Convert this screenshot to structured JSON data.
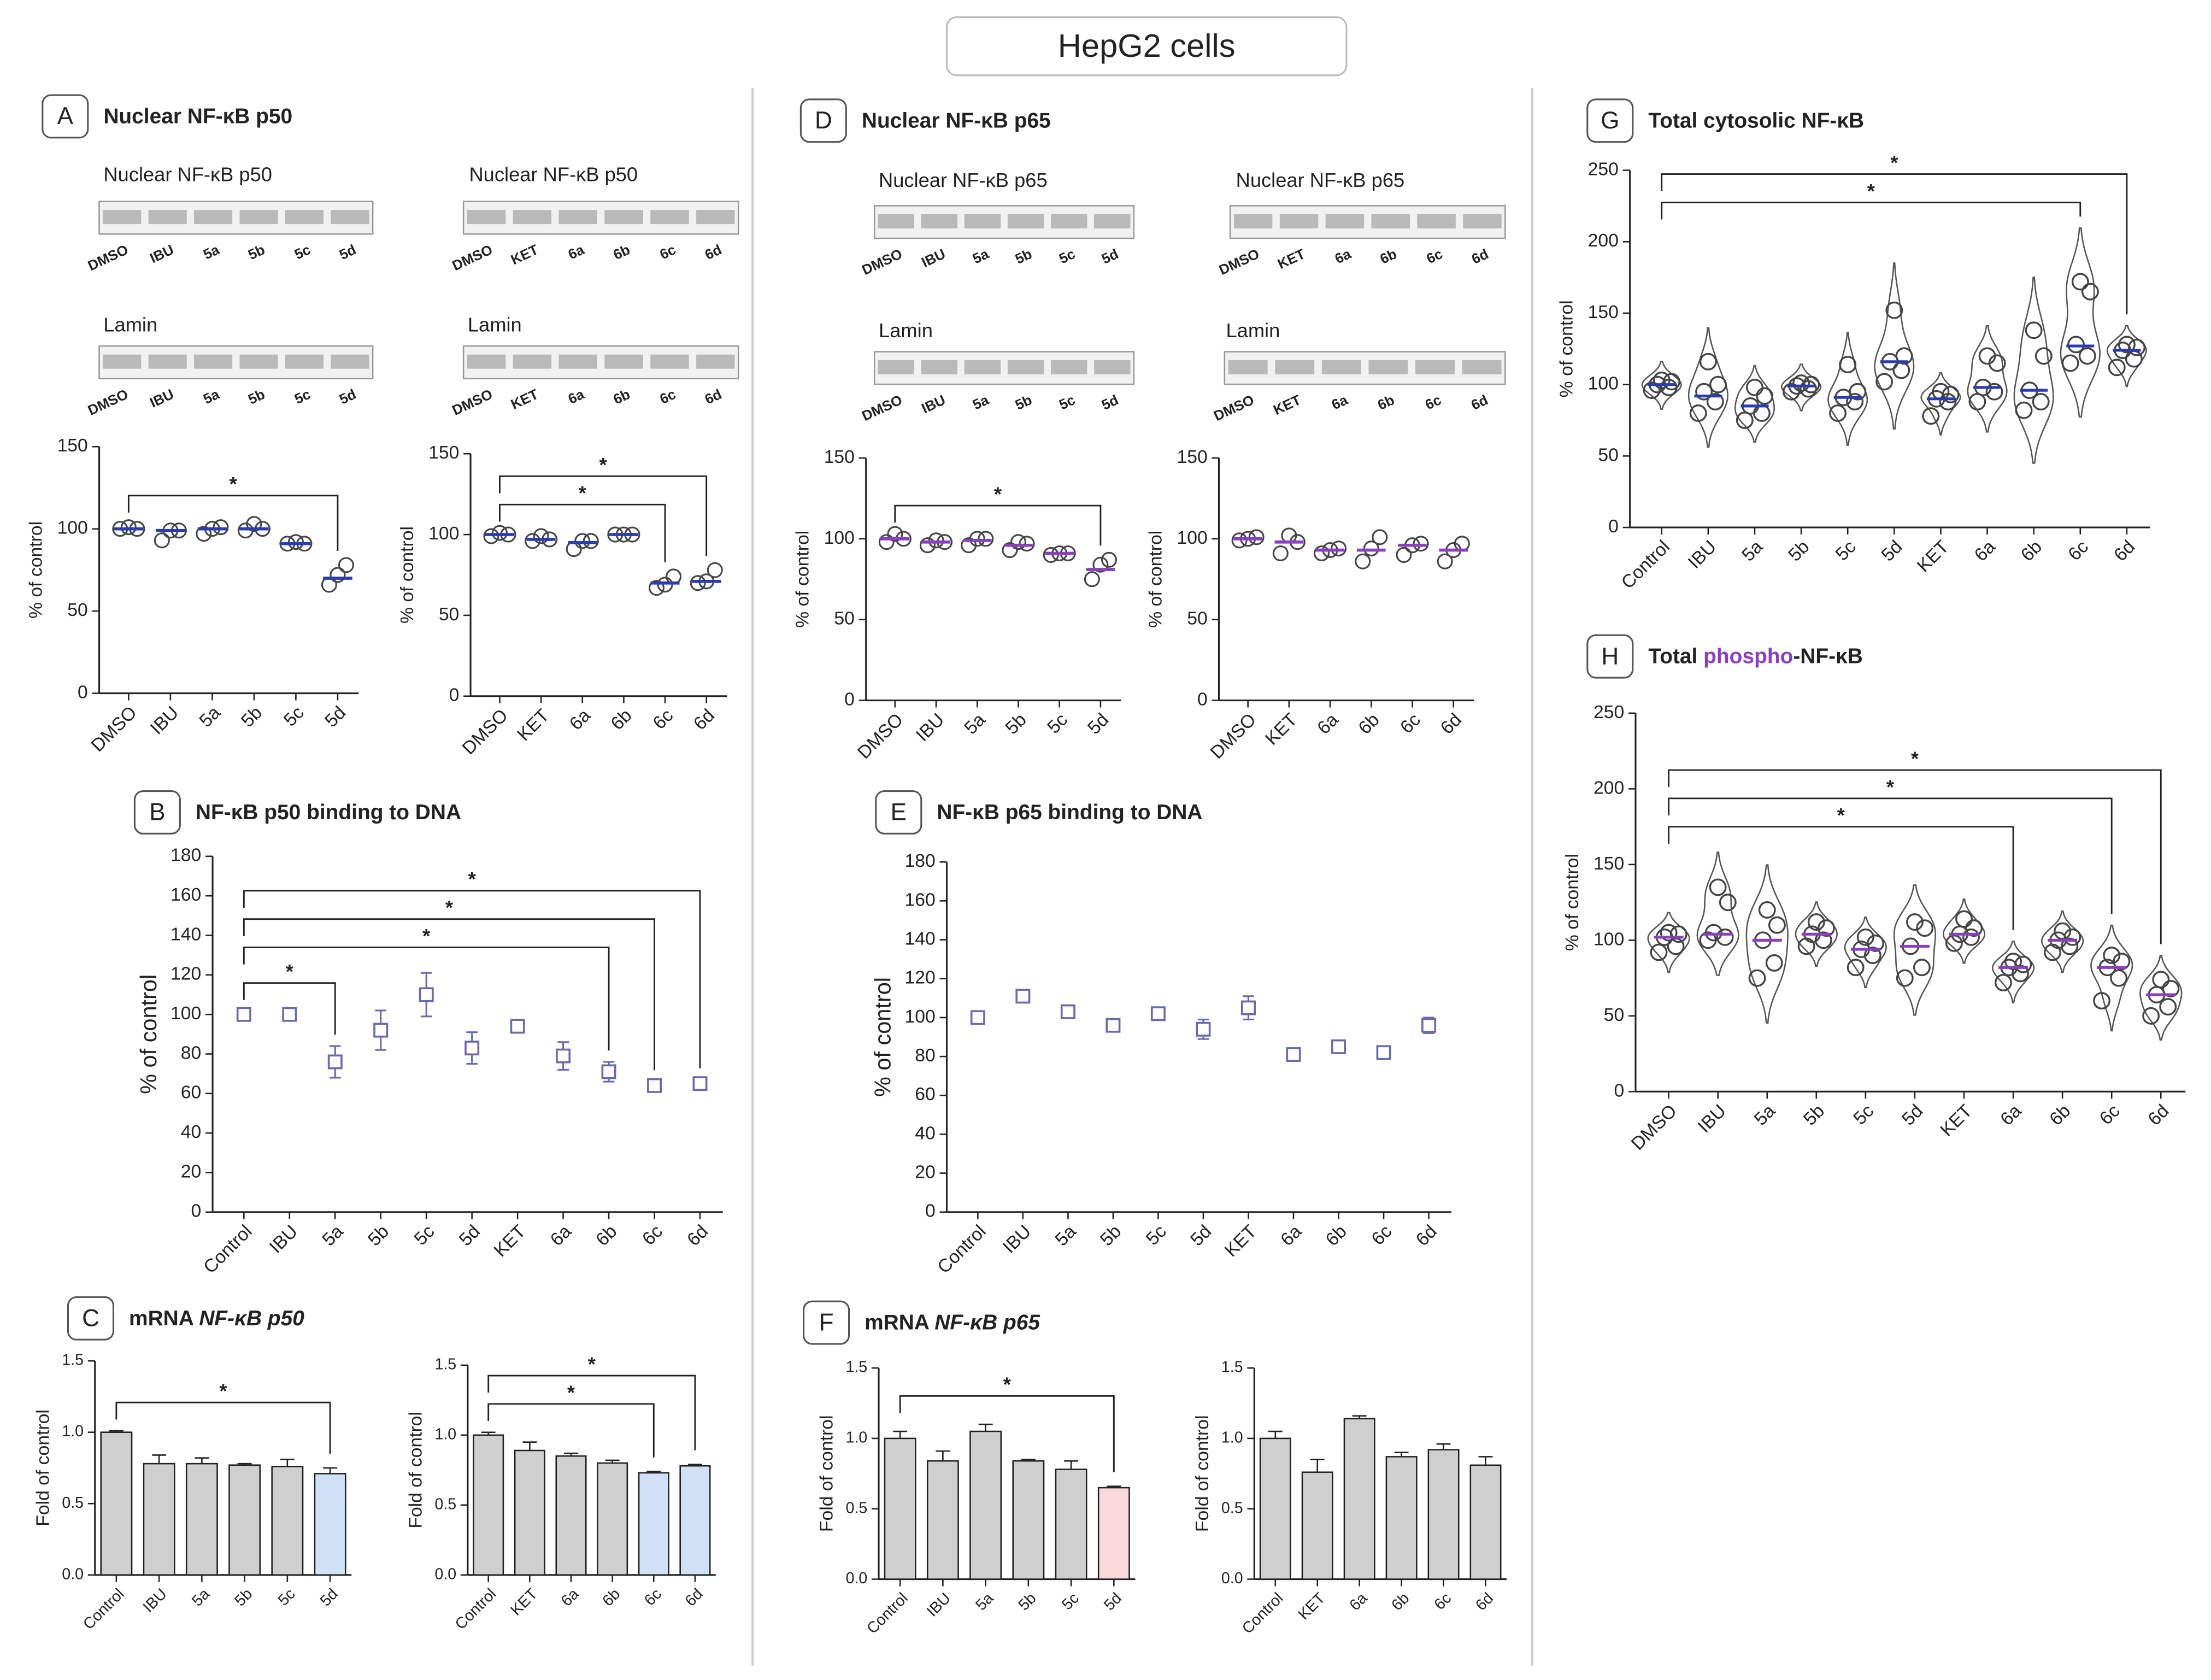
{
  "header": {
    "title": "HepG2 cells"
  },
  "panels": [
    {
      "letter": "A",
      "title": [
        {
          "text": "Nuclear NF-κB p50"
        }
      ],
      "blots": [
        {
          "label": "Nuclear NF-κB p50",
          "lanes": [
            "DMSO",
            "IBU",
            "5a",
            "5b",
            "5c",
            "5d"
          ]
        },
        {
          "label": "Nuclear NF-κB p50",
          "lanes": [
            "DMSO",
            "KET",
            "6a",
            "6b",
            "6c",
            "6d"
          ]
        },
        {
          "label": "Lamin",
          "lanes": [
            "DMSO",
            "IBU",
            "5a",
            "5b",
            "5c",
            "5d"
          ]
        },
        {
          "label": "Lamin",
          "lanes": [
            "DMSO",
            "KET",
            "6a",
            "6b",
            "6c",
            "6d"
          ]
        }
      ]
    },
    {
      "letter": "B",
      "title": [
        {
          "text": "NF-κB p50 binding to DNA"
        }
      ]
    },
    {
      "letter": "C",
      "title": [
        {
          "text": "mRNA "
        },
        {
          "text": "NF-κB p50",
          "style": "italic"
        }
      ]
    },
    {
      "letter": "D",
      "title": [
        {
          "text": "Nuclear NF-κB p65"
        }
      ],
      "blots": [
        {
          "label": "Nuclear NF-κB p65",
          "lanes": [
            "DMSO",
            "IBU",
            "5a",
            "5b",
            "5c",
            "5d"
          ]
        },
        {
          "label": "Nuclear NF-κB p65",
          "lanes": [
            "DMSO",
            "KET",
            "6a",
            "6b",
            "6c",
            "6d"
          ]
        },
        {
          "label": "Lamin",
          "lanes": [
            "DMSO",
            "IBU",
            "5a",
            "5b",
            "5c",
            "5d"
          ]
        },
        {
          "label": "Lamin",
          "lanes": [
            "DMSO",
            "KET",
            "6a",
            "6b",
            "6c",
            "6d"
          ]
        }
      ]
    },
    {
      "letter": "E",
      "title": [
        {
          "text": "NF-κB p65 binding to DNA"
        }
      ]
    },
    {
      "letter": "F",
      "title": [
        {
          "text": "mRNA "
        },
        {
          "text": "NF-κB p65",
          "style": "italic"
        }
      ]
    },
    {
      "letter": "G",
      "title": [
        {
          "text": "Total cytosolic NF-κB"
        }
      ]
    },
    {
      "letter": "H",
      "title": [
        {
          "text": "Total "
        },
        {
          "text": "phospho",
          "color": "#8a3fc0"
        },
        {
          "text": "-NF-κB"
        }
      ]
    }
  ],
  "chart_data": [
    {
      "type": "strip",
      "ylabel": "% of control",
      "categories": [
        "DMSO",
        "IBU",
        "5a",
        "5b",
        "5c",
        "5d"
      ],
      "values": [
        100,
        99,
        100,
        100,
        91,
        70
      ],
      "points": [
        [
          100,
          101,
          100
        ],
        [
          93,
          99,
          99
        ],
        [
          97,
          100,
          101
        ],
        [
          99,
          103,
          100
        ],
        [
          91,
          92,
          91
        ],
        [
          66,
          72,
          78
        ]
      ],
      "color": "#2a3cb0",
      "ylim": [
        0,
        150
      ],
      "yticks": [
        0,
        50,
        100,
        150
      ],
      "significance": [
        {
          "from": "DMSO",
          "to": "5d",
          "label": "*"
        }
      ]
    },
    {
      "type": "strip",
      "ylabel": "% of control",
      "categories": [
        "DMSO",
        "KET",
        "6a",
        "6b",
        "6c",
        "6d"
      ],
      "values": [
        100,
        97,
        95,
        100,
        70,
        71
      ],
      "points": [
        [
          99,
          101,
          100
        ],
        [
          96,
          99,
          97
        ],
        [
          91,
          96,
          96
        ],
        [
          100,
          100,
          100
        ],
        [
          67,
          69,
          74
        ],
        [
          70,
          71,
          78
        ]
      ],
      "color": "#2a3cb0",
      "ylim": [
        0,
        150
      ],
      "yticks": [
        0,
        50,
        100,
        150
      ],
      "significance": [
        {
          "from": "DMSO",
          "to": "6c",
          "label": "*"
        },
        {
          "from": "DMSO",
          "to": "6d",
          "label": "*"
        }
      ]
    },
    {
      "type": "errorbar",
      "ylabel": "% of control",
      "categories": [
        "Control",
        "IBU",
        "5a",
        "5b",
        "5c",
        "5d",
        "KET",
        "6a",
        "6b",
        "6c",
        "6d"
      ],
      "values": [
        100,
        100,
        76,
        92,
        110,
        83,
        94,
        79,
        71,
        64,
        65
      ],
      "errors": [
        3,
        2,
        8,
        10,
        11,
        8,
        2,
        7,
        5,
        2,
        2
      ],
      "color": "#6a6aa8",
      "ylim": [
        0,
        180
      ],
      "yticks": [
        0,
        20,
        40,
        60,
        80,
        100,
        120,
        140,
        160,
        180
      ],
      "significance": [
        {
          "from": "Control",
          "to": "5a",
          "label": "*"
        },
        {
          "from": "Control",
          "to": "6b",
          "label": "*"
        },
        {
          "from": "Control",
          "to": "6c",
          "label": "*"
        },
        {
          "from": "Control",
          "to": "6d",
          "label": "*"
        }
      ]
    },
    {
      "type": "bar",
      "ylabel": "Fold of control",
      "categories": [
        "Control",
        "IBU",
        "5a",
        "5b",
        "5c",
        "5d"
      ],
      "values": [
        1.0,
        0.78,
        0.78,
        0.77,
        0.76,
        0.71
      ],
      "errors": [
        0.01,
        0.06,
        0.04,
        0.01,
        0.05,
        0.04
      ],
      "colors": [
        "#cfcfcf",
        "#cfcfcf",
        "#cfcfcf",
        "#cfcfcf",
        "#cfcfcf",
        "#cfe0f7"
      ],
      "ylim": [
        0,
        1.5
      ],
      "yticks": [
        {
          "value": 0,
          "label": "0.0"
        },
        0.5,
        {
          "value": 1,
          "label": "1.0"
        },
        1.5
      ],
      "significance": [
        {
          "from": "Control",
          "to": "5d",
          "label": "*"
        }
      ]
    },
    {
      "type": "bar",
      "ylabel": "Fold of control",
      "categories": [
        "Control",
        "KET",
        "6a",
        "6b",
        "6c",
        "6d"
      ],
      "values": [
        1.0,
        0.89,
        0.85,
        0.8,
        0.73,
        0.78
      ],
      "errors": [
        0.02,
        0.06,
        0.02,
        0.02,
        0.01,
        0.01
      ],
      "colors": [
        "#cfcfcf",
        "#cfcfcf",
        "#cfcfcf",
        "#cfcfcf",
        "#cfe0f7",
        "#cfe0f7"
      ],
      "ylim": [
        0,
        1.5
      ],
      "yticks": [
        {
          "value": 0,
          "label": "0.0"
        },
        0.5,
        {
          "value": 1,
          "label": "1.0"
        },
        1.5
      ],
      "significance": [
        {
          "from": "Control",
          "to": "6c",
          "label": "*"
        },
        {
          "from": "Control",
          "to": "6d",
          "label": "*"
        }
      ]
    },
    {
      "type": "strip",
      "ylabel": "% of control",
      "categories": [
        "DMSO",
        "IBU",
        "5a",
        "5b",
        "5c",
        "5d"
      ],
      "values": [
        100,
        98,
        99,
        96,
        91,
        81
      ],
      "points": [
        [
          98,
          103,
          100
        ],
        [
          96,
          99,
          98
        ],
        [
          96,
          100,
          100
        ],
        [
          93,
          98,
          97
        ],
        [
          90,
          91,
          91
        ],
        [
          75,
          84,
          87
        ]
      ],
      "color": "#8a3fc0",
      "ylim": [
        0,
        150
      ],
      "yticks": [
        0,
        50,
        100,
        150
      ],
      "significance": [
        {
          "from": "DMSO",
          "to": "5d",
          "label": "*"
        }
      ]
    },
    {
      "type": "strip",
      "ylabel": "% of control",
      "categories": [
        "DMSO",
        "KET",
        "6a",
        "6b",
        "6c",
        "6d"
      ],
      "values": [
        100,
        98,
        93,
        93,
        96,
        93
      ],
      "points": [
        [
          99,
          100,
          101
        ],
        [
          91,
          102,
          98
        ],
        [
          91,
          93,
          94
        ],
        [
          86,
          94,
          101
        ],
        [
          90,
          96,
          97
        ],
        [
          86,
          93,
          97
        ]
      ],
      "color": "#8a3fc0",
      "ylim": [
        0,
        150
      ],
      "yticks": [
        0,
        50,
        100,
        150
      ],
      "significance": []
    },
    {
      "type": "errorbar",
      "ylabel": "% of control",
      "categories": [
        "Control",
        "IBU",
        "5a",
        "5b",
        "5c",
        "5d",
        "KET",
        "6a",
        "6b",
        "6c",
        "6d"
      ],
      "values": [
        100,
        111,
        103,
        96,
        102,
        94,
        105,
        81,
        85,
        82,
        96
      ],
      "errors": [
        2,
        3,
        3,
        2,
        3,
        5,
        6,
        2,
        2,
        2,
        4
      ],
      "color": "#6a6aa8",
      "ylim": [
        0,
        180
      ],
      "yticks": [
        0,
        20,
        40,
        60,
        80,
        100,
        120,
        140,
        160,
        180
      ],
      "significance": []
    },
    {
      "type": "bar",
      "ylabel": "Fold of control",
      "categories": [
        "Control",
        "IBU",
        "5a",
        "5b",
        "5c",
        "5d"
      ],
      "values": [
        1.0,
        0.84,
        1.05,
        0.84,
        0.78,
        0.65
      ],
      "errors": [
        0.05,
        0.07,
        0.05,
        0.01,
        0.06,
        0.01
      ],
      "colors": [
        "#cfcfcf",
        "#cfcfcf",
        "#cfcfcf",
        "#cfcfcf",
        "#cfcfcf",
        "#f9d9d9"
      ],
      "ylim": [
        0,
        1.5
      ],
      "yticks": [
        {
          "value": 0,
          "label": "0.0"
        },
        0.5,
        {
          "value": 1,
          "label": "1.0"
        },
        1.5
      ],
      "significance": [
        {
          "from": "Control",
          "to": "5d",
          "label": "*"
        }
      ]
    },
    {
      "type": "bar",
      "ylabel": "Fold of control",
      "categories": [
        "Control",
        "KET",
        "6a",
        "6b",
        "6c",
        "6d"
      ],
      "values": [
        1.0,
        0.76,
        1.14,
        0.87,
        0.92,
        0.81
      ],
      "errors": [
        0.05,
        0.09,
        0.02,
        0.03,
        0.04,
        0.06
      ],
      "colors": [
        "#cfcfcf",
        "#cfcfcf",
        "#cfcfcf",
        "#cfcfcf",
        "#cfcfcf",
        "#cfcfcf"
      ],
      "ylim": [
        0,
        1.5
      ],
      "yticks": [
        {
          "value": 0,
          "label": "0.0"
        },
        0.5,
        {
          "value": 1,
          "label": "1.0"
        },
        1.5
      ],
      "significance": []
    },
    {
      "type": "violin",
      "ylabel": "% of control",
      "categories": [
        "Control",
        "IBU",
        "5a",
        "5b",
        "5c",
        "5d",
        "KET",
        "6a",
        "6b",
        "6c",
        "6d"
      ],
      "values": [
        100,
        92,
        85,
        99,
        91,
        116,
        90,
        98,
        96,
        127,
        124
      ],
      "points": [
        [
          96,
          98,
          100,
          102,
          103
        ],
        [
          80,
          88,
          95,
          100,
          116
        ],
        [
          75,
          80,
          85,
          92,
          98
        ],
        [
          95,
          97,
          99,
          100,
          101
        ],
        [
          80,
          88,
          91,
          95,
          114
        ],
        [
          102,
          110,
          116,
          120,
          152
        ],
        [
          78,
          88,
          90,
          93,
          95
        ],
        [
          88,
          95,
          98,
          115,
          120
        ],
        [
          82,
          88,
          96,
          120,
          138
        ],
        [
          115,
          120,
          128,
          165,
          172
        ],
        [
          112,
          118,
          124,
          126,
          128
        ]
      ],
      "color": "#2a3cb0",
      "ylim": [
        0,
        250
      ],
      "yticks": [
        0,
        50,
        100,
        150,
        200,
        250
      ],
      "significance": [
        {
          "from": "Control",
          "to": "6c",
          "label": "*"
        },
        {
          "from": "Control",
          "to": "6d",
          "label": "*"
        }
      ]
    },
    {
      "type": "violin",
      "ylabel": "% of control",
      "categories": [
        "DMSO",
        "IBU",
        "5a",
        "5b",
        "5c",
        "5d",
        "KET",
        "6a",
        "6b",
        "6c",
        "6d"
      ],
      "values": [
        102,
        104,
        100,
        104,
        94,
        96,
        104,
        82,
        100,
        82,
        64
      ],
      "points": [
        [
          92,
          96,
          102,
          104,
          105
        ],
        [
          100,
          102,
          105,
          125,
          135
        ],
        [
          75,
          85,
          100,
          110,
          120
        ],
        [
          96,
          100,
          104,
          108,
          112
        ],
        [
          82,
          90,
          94,
          98,
          102
        ],
        [
          75,
          82,
          96,
          108,
          112
        ],
        [
          98,
          102,
          104,
          108,
          114
        ],
        [
          72,
          78,
          82,
          84,
          86
        ],
        [
          92,
          96,
          100,
          102,
          106
        ],
        [
          60,
          75,
          82,
          86,
          90
        ],
        [
          50,
          56,
          64,
          68,
          74
        ]
      ],
      "color": "#8a3fc0",
      "ylim": [
        0,
        250
      ],
      "yticks": [
        0,
        50,
        100,
        150,
        200,
        250
      ],
      "significance": [
        {
          "from": "DMSO",
          "to": "6a",
          "label": "*"
        },
        {
          "from": "DMSO",
          "to": "6c",
          "label": "*"
        },
        {
          "from": "DMSO",
          "to": "6d",
          "label": "*"
        }
      ]
    }
  ]
}
